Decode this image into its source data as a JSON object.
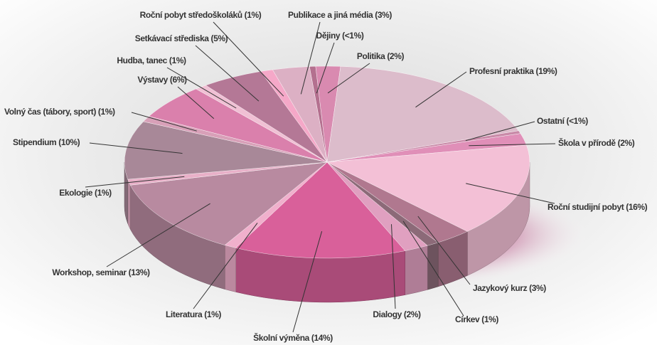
{
  "chart_data": {
    "type": "pie3d",
    "categories": [
      "Dějiny (<1%)",
      "Politika (2%)",
      "Profesní praktika (19%)",
      "Ostatní (<1%)",
      "Škola v přírodě (2%)",
      "Roční studijní pobyt (16%)",
      "Jazykový kurz (3%)",
      "Církev (1%)",
      "Dialogy (2%)",
      "Školní výměna (14%)",
      "Literatura (1%)",
      "Workshop, seminar (13%)",
      "Ekologie (1%)",
      "Stipendium (10%)",
      "Volný čas (tábory, sport) (1%)",
      "Výstavy (6%)",
      "Hudba, tanec (1%)",
      "Setkávací střediska (5%)",
      "Roční pobyt středoškoláků (1%)",
      "Publikace a jiná média (3%)"
    ],
    "values": [
      0.5,
      2,
      19,
      0.5,
      2,
      16,
      3,
      1,
      2,
      14,
      1,
      13,
      1,
      10,
      1,
      6,
      1,
      5,
      1,
      3
    ],
    "colors": [
      "#b4708f",
      "#d98ab0",
      "#dcbccb",
      "#c98aa8",
      "#e08fb8",
      "#f3c0d6",
      "#b0788f",
      "#8c6a78",
      "#e0a0c0",
      "#d9609a",
      "#f0b0cc",
      "#b88aa0",
      "#e8b0c8",
      "#a88898",
      "#d8a0b8",
      "#da80ac",
      "#f0c0d4",
      "#b47896",
      "#f5a8c8",
      "#dcb0c4"
    ]
  }
}
